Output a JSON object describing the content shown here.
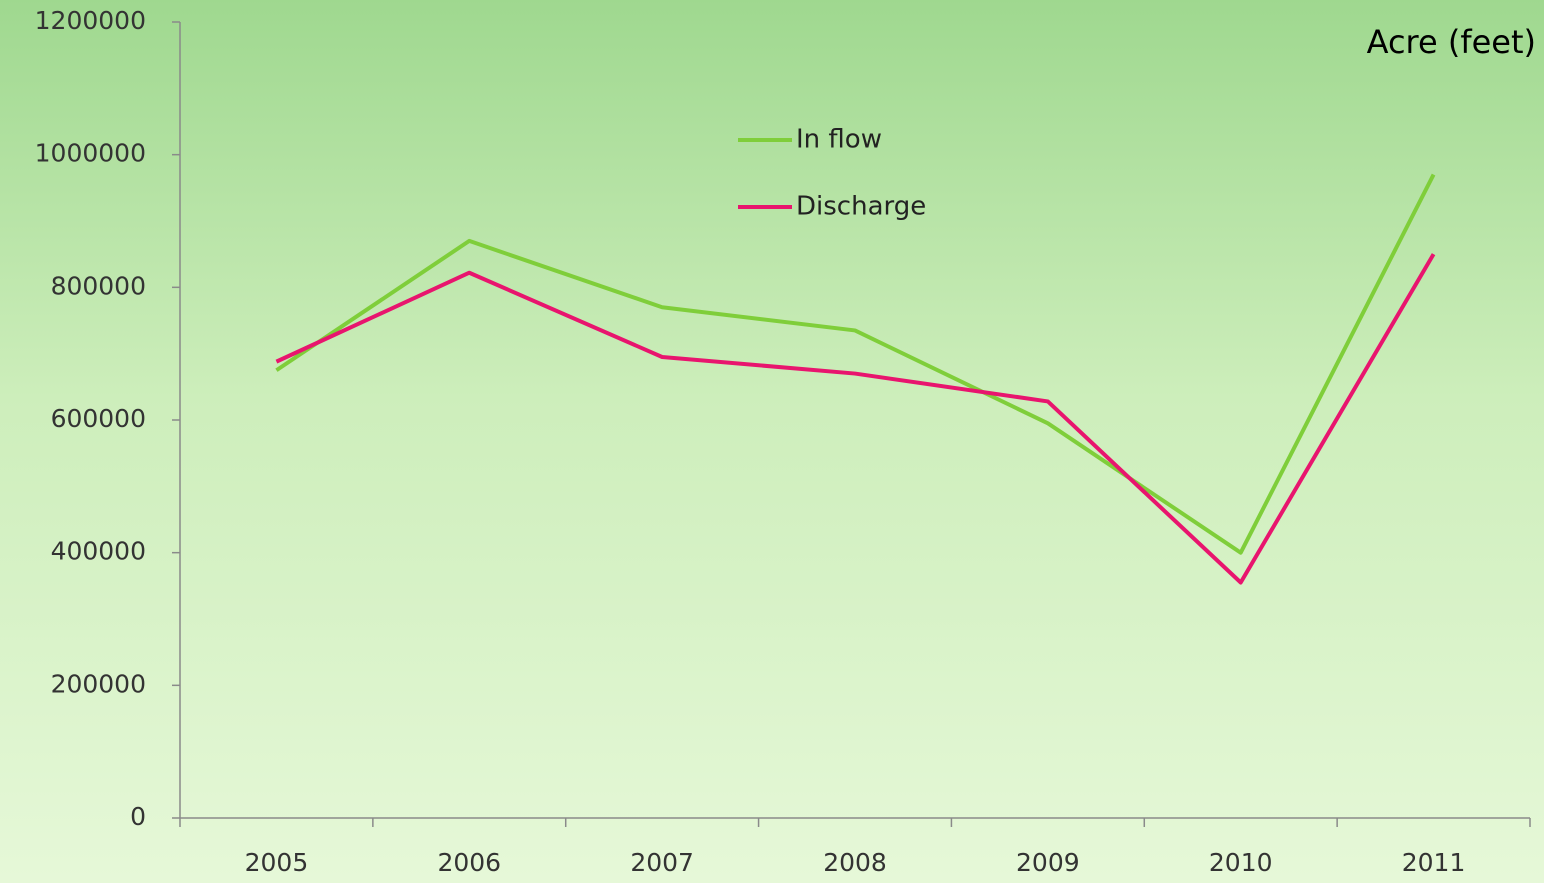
{
  "chart_data": {
    "type": "line",
    "annotation": "Acre (feet)",
    "categories": [
      "2005",
      "2006",
      "2007",
      "2008",
      "2009",
      "2010",
      "2011"
    ],
    "series": [
      {
        "name": "In flow",
        "color": "#7fce3a",
        "values": [
          675000,
          870000,
          770000,
          735000,
          595000,
          400000,
          970000
        ]
      },
      {
        "name": "Discharge",
        "color": "#e8156e",
        "values": [
          688000,
          822000,
          695000,
          670000,
          628000,
          355000,
          850000
        ]
      }
    ],
    "ylim": [
      0,
      1200000
    ],
    "yticks": [
      0,
      200000,
      400000,
      600000,
      800000,
      1000000,
      1200000
    ],
    "legend": "top"
  }
}
